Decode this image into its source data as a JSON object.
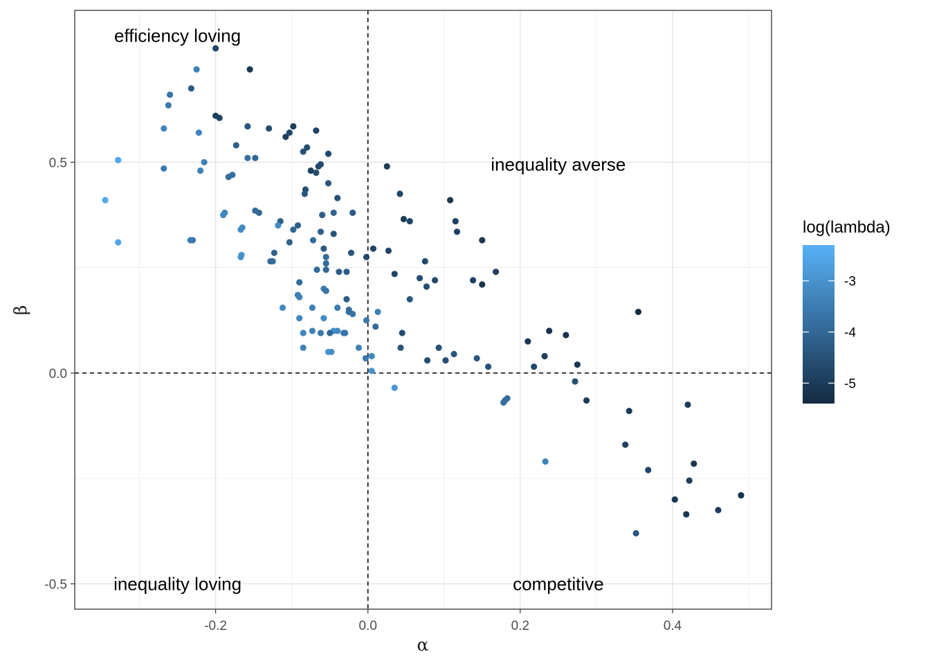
{
  "chart_data": {
    "type": "scatter",
    "title": "",
    "xlabel": "α",
    "ylabel": "β",
    "xlim": [
      -0.385,
      0.53
    ],
    "ylim": [
      -0.56,
      0.86
    ],
    "x_ticks": [
      -0.2,
      0.0,
      0.2,
      0.4
    ],
    "x_tick_labels": [
      "-0.2",
      "0.0",
      "0.2",
      "0.4"
    ],
    "y_ticks": [
      -0.5,
      0.0,
      0.5
    ],
    "y_tick_labels": [
      "-0.5",
      "0.0",
      "0.5"
    ],
    "grid": true,
    "reference_lines": [
      {
        "axis": "x",
        "value": 0,
        "style": "dashed"
      },
      {
        "axis": "y",
        "value": 0,
        "style": "dashed"
      }
    ],
    "annotations": [
      {
        "text": "efficiency loving",
        "x": -0.25,
        "y": 0.8
      },
      {
        "text": "inequality averse",
        "x": 0.25,
        "y": 0.495
      },
      {
        "text": "inequality loving",
        "x": -0.25,
        "y": -0.5
      },
      {
        "text": "competitive",
        "x": 0.25,
        "y": -0.5
      }
    ],
    "color_scale": {
      "name": "log(lambda)",
      "low": -5.4,
      "high": -2.3,
      "low_color": "#132B43",
      "high_color": "#56B1F7",
      "ticks": [
        -3,
        -4,
        -5
      ],
      "tick_labels": [
        "-3",
        "-4",
        "-5"
      ],
      "legend_position": "right"
    },
    "points": [
      {
        "x": -0.2,
        "y": 0.77,
        "c": -4.8
      },
      {
        "x": -0.155,
        "y": 0.72,
        "c": -5.1
      },
      {
        "x": -0.225,
        "y": 0.72,
        "c": -3.4
      },
      {
        "x": -0.232,
        "y": 0.675,
        "c": -4.3
      },
      {
        "x": -0.26,
        "y": 0.66,
        "c": -3.7
      },
      {
        "x": -0.262,
        "y": 0.635,
        "c": -3.6
      },
      {
        "x": -0.2,
        "y": 0.61,
        "c": -4.9
      },
      {
        "x": -0.195,
        "y": 0.605,
        "c": -4.9
      },
      {
        "x": -0.268,
        "y": 0.58,
        "c": -3.3
      },
      {
        "x": -0.222,
        "y": 0.57,
        "c": -3.3
      },
      {
        "x": -0.158,
        "y": 0.585,
        "c": -4.4
      },
      {
        "x": -0.13,
        "y": 0.58,
        "c": -4.6
      },
      {
        "x": -0.098,
        "y": 0.585,
        "c": -5.0
      },
      {
        "x": -0.103,
        "y": 0.57,
        "c": -4.7
      },
      {
        "x": -0.108,
        "y": 0.56,
        "c": -4.9
      },
      {
        "x": -0.068,
        "y": 0.575,
        "c": -4.8
      },
      {
        "x": -0.173,
        "y": 0.54,
        "c": -4.2
      },
      {
        "x": -0.08,
        "y": 0.535,
        "c": -4.6
      },
      {
        "x": -0.085,
        "y": 0.525,
        "c": -4.5
      },
      {
        "x": -0.052,
        "y": 0.52,
        "c": -4.7
      },
      {
        "x": -0.328,
        "y": 0.505,
        "c": -2.6
      },
      {
        "x": -0.158,
        "y": 0.51,
        "c": -3.8
      },
      {
        "x": -0.148,
        "y": 0.51,
        "c": -4.0
      },
      {
        "x": -0.215,
        "y": 0.5,
        "c": -3.4
      },
      {
        "x": -0.268,
        "y": 0.485,
        "c": -3.6
      },
      {
        "x": -0.22,
        "y": 0.48,
        "c": -3.4
      },
      {
        "x": -0.062,
        "y": 0.495,
        "c": -4.6
      },
      {
        "x": -0.065,
        "y": 0.49,
        "c": -4.7
      },
      {
        "x": -0.075,
        "y": 0.48,
        "c": -4.9
      },
      {
        "x": -0.068,
        "y": 0.475,
        "c": -4.6
      },
      {
        "x": -0.178,
        "y": 0.47,
        "c": -3.8
      },
      {
        "x": -0.183,
        "y": 0.465,
        "c": -3.9
      },
      {
        "x": 0.025,
        "y": 0.49,
        "c": -5.0
      },
      {
        "x": -0.052,
        "y": 0.45,
        "c": -4.4
      },
      {
        "x": -0.082,
        "y": 0.435,
        "c": -4.6
      },
      {
        "x": -0.083,
        "y": 0.425,
        "c": -4.4
      },
      {
        "x": 0.042,
        "y": 0.425,
        "c": -4.8
      },
      {
        "x": -0.04,
        "y": 0.415,
        "c": -4.5
      },
      {
        "x": 0.108,
        "y": 0.41,
        "c": -5.1
      },
      {
        "x": -0.345,
        "y": 0.41,
        "c": -2.5
      },
      {
        "x": -0.148,
        "y": 0.385,
        "c": -3.9
      },
      {
        "x": -0.143,
        "y": 0.38,
        "c": -4.0
      },
      {
        "x": -0.188,
        "y": 0.38,
        "c": -3.3
      },
      {
        "x": -0.19,
        "y": 0.375,
        "c": -3.3
      },
      {
        "x": -0.045,
        "y": 0.38,
        "c": -4.1
      },
      {
        "x": -0.02,
        "y": 0.38,
        "c": -4.3
      },
      {
        "x": -0.06,
        "y": 0.375,
        "c": -4.2
      },
      {
        "x": 0.047,
        "y": 0.365,
        "c": -5.0
      },
      {
        "x": 0.055,
        "y": 0.36,
        "c": -4.8
      },
      {
        "x": 0.115,
        "y": 0.36,
        "c": -4.9
      },
      {
        "x": -0.115,
        "y": 0.36,
        "c": -4.2
      },
      {
        "x": -0.118,
        "y": 0.35,
        "c": -3.2
      },
      {
        "x": -0.165,
        "y": 0.345,
        "c": -3.2
      },
      {
        "x": -0.167,
        "y": 0.34,
        "c": -3.2
      },
      {
        "x": -0.092,
        "y": 0.35,
        "c": -4.2
      },
      {
        "x": -0.098,
        "y": 0.34,
        "c": -4.0
      },
      {
        "x": 0.117,
        "y": 0.335,
        "c": -4.9
      },
      {
        "x": -0.062,
        "y": 0.335,
        "c": -4.2
      },
      {
        "x": -0.045,
        "y": 0.33,
        "c": -4.5
      },
      {
        "x": -0.233,
        "y": 0.315,
        "c": -3.5
      },
      {
        "x": -0.23,
        "y": 0.315,
        "c": -3.6
      },
      {
        "x": -0.328,
        "y": 0.31,
        "c": -2.6
      },
      {
        "x": -0.103,
        "y": 0.31,
        "c": -4.1
      },
      {
        "x": -0.072,
        "y": 0.315,
        "c": -3.9
      },
      {
        "x": 0.15,
        "y": 0.315,
        "c": -5.1
      },
      {
        "x": -0.058,
        "y": 0.295,
        "c": -4.3
      },
      {
        "x": 0.007,
        "y": 0.295,
        "c": -4.8
      },
      {
        "x": 0.027,
        "y": 0.29,
        "c": -4.8
      },
      {
        "x": -0.022,
        "y": 0.285,
        "c": -4.4
      },
      {
        "x": -0.123,
        "y": 0.285,
        "c": -4.1
      },
      {
        "x": -0.166,
        "y": 0.28,
        "c": -3.0
      },
      {
        "x": -0.167,
        "y": 0.275,
        "c": -3.0
      },
      {
        "x": -0.055,
        "y": 0.275,
        "c": -3.9
      },
      {
        "x": -0.002,
        "y": 0.275,
        "c": -4.7
      },
      {
        "x": -0.128,
        "y": 0.265,
        "c": -3.9
      },
      {
        "x": -0.125,
        "y": 0.265,
        "c": -3.9
      },
      {
        "x": 0.075,
        "y": 0.265,
        "c": -4.7
      },
      {
        "x": -0.055,
        "y": 0.26,
        "c": -3.9
      },
      {
        "x": -0.055,
        "y": 0.245,
        "c": -4.0
      },
      {
        "x": -0.067,
        "y": 0.245,
        "c": -3.9
      },
      {
        "x": 0.168,
        "y": 0.24,
        "c": -4.9
      },
      {
        "x": -0.038,
        "y": 0.24,
        "c": -4.2
      },
      {
        "x": -0.028,
        "y": 0.24,
        "c": -4.3
      },
      {
        "x": 0.035,
        "y": 0.235,
        "c": -4.8
      },
      {
        "x": 0.068,
        "y": 0.225,
        "c": -4.6
      },
      {
        "x": 0.088,
        "y": 0.22,
        "c": -4.7
      },
      {
        "x": 0.138,
        "y": 0.22,
        "c": -4.9
      },
      {
        "x": 0.15,
        "y": 0.21,
        "c": -5.2
      },
      {
        "x": -0.09,
        "y": 0.215,
        "c": -3.9
      },
      {
        "x": -0.058,
        "y": 0.2,
        "c": -3.5
      },
      {
        "x": 0.077,
        "y": 0.205,
        "c": -4.6
      },
      {
        "x": -0.055,
        "y": 0.195,
        "c": -3.7
      },
      {
        "x": -0.092,
        "y": 0.185,
        "c": -3.5
      },
      {
        "x": -0.09,
        "y": 0.18,
        "c": -3.4
      },
      {
        "x": 0.055,
        "y": 0.175,
        "c": -4.4
      },
      {
        "x": -0.028,
        "y": 0.175,
        "c": -4.3
      },
      {
        "x": -0.112,
        "y": 0.155,
        "c": -3.2
      },
      {
        "x": -0.073,
        "y": 0.155,
        "c": -3.4
      },
      {
        "x": -0.04,
        "y": 0.155,
        "c": -3.5
      },
      {
        "x": -0.025,
        "y": 0.15,
        "c": -3.8
      },
      {
        "x": -0.025,
        "y": 0.145,
        "c": -3.9
      },
      {
        "x": 0.013,
        "y": 0.145,
        "c": -3.4
      },
      {
        "x": 0.355,
        "y": 0.145,
        "c": -5.4
      },
      {
        "x": -0.02,
        "y": 0.14,
        "c": -3.7
      },
      {
        "x": -0.09,
        "y": 0.13,
        "c": -3.3
      },
      {
        "x": -0.058,
        "y": 0.13,
        "c": -3.2
      },
      {
        "x": -0.002,
        "y": 0.125,
        "c": -3.6
      },
      {
        "x": 0.01,
        "y": 0.11,
        "c": -3.9
      },
      {
        "x": -0.073,
        "y": 0.1,
        "c": -3.4
      },
      {
        "x": -0.045,
        "y": 0.1,
        "c": -3.1
      },
      {
        "x": -0.04,
        "y": 0.1,
        "c": -3.2
      },
      {
        "x": 0.238,
        "y": 0.1,
        "c": -5.2
      },
      {
        "x": -0.085,
        "y": 0.095,
        "c": -3.3
      },
      {
        "x": -0.062,
        "y": 0.095,
        "c": -3.6
      },
      {
        "x": -0.05,
        "y": 0.095,
        "c": -4.0
      },
      {
        "x": -0.032,
        "y": 0.095,
        "c": -3.5
      },
      {
        "x": -0.03,
        "y": 0.095,
        "c": -3.7
      },
      {
        "x": 0.045,
        "y": 0.095,
        "c": -4.6
      },
      {
        "x": 0.26,
        "y": 0.09,
        "c": -5.2
      },
      {
        "x": 0.21,
        "y": 0.075,
        "c": -5.1
      },
      {
        "x": -0.085,
        "y": 0.06,
        "c": -3.4
      },
      {
        "x": -0.012,
        "y": 0.06,
        "c": -3.4
      },
      {
        "x": 0.043,
        "y": 0.06,
        "c": -4.4
      },
      {
        "x": 0.093,
        "y": 0.06,
        "c": -4.5
      },
      {
        "x": -0.052,
        "y": 0.05,
        "c": -3.1
      },
      {
        "x": -0.048,
        "y": 0.05,
        "c": -3.1
      },
      {
        "x": 0.113,
        "y": 0.045,
        "c": -4.4
      },
      {
        "x": 0.005,
        "y": 0.04,
        "c": -3.3
      },
      {
        "x": 0.232,
        "y": 0.04,
        "c": -4.9
      },
      {
        "x": -0.003,
        "y": 0.035,
        "c": -3.6
      },
      {
        "x": 0.078,
        "y": 0.03,
        "c": -4.6
      },
      {
        "x": 0.102,
        "y": 0.03,
        "c": -4.6
      },
      {
        "x": 0.143,
        "y": 0.035,
        "c": -4.4
      },
      {
        "x": 0.275,
        "y": 0.02,
        "c": -5.1
      },
      {
        "x": 0.158,
        "y": 0.015,
        "c": -4.5
      },
      {
        "x": 0.218,
        "y": 0.015,
        "c": -4.7
      },
      {
        "x": 0.005,
        "y": 0.005,
        "c": -3.0
      },
      {
        "x": 0.272,
        "y": -0.02,
        "c": -4.6
      },
      {
        "x": 0.035,
        "y": -0.035,
        "c": -2.9
      },
      {
        "x": 0.18,
        "y": -0.065,
        "c": -3.9
      },
      {
        "x": 0.183,
        "y": -0.06,
        "c": -3.9
      },
      {
        "x": 0.178,
        "y": -0.07,
        "c": -3.8
      },
      {
        "x": 0.287,
        "y": -0.065,
        "c": -5.0
      },
      {
        "x": 0.42,
        "y": -0.075,
        "c": -5.0
      },
      {
        "x": 0.343,
        "y": -0.09,
        "c": -5.0
      },
      {
        "x": 0.338,
        "y": -0.17,
        "c": -4.9
      },
      {
        "x": 0.233,
        "y": -0.21,
        "c": -3.4
      },
      {
        "x": 0.428,
        "y": -0.215,
        "c": -5.2
      },
      {
        "x": 0.368,
        "y": -0.23,
        "c": -4.8
      },
      {
        "x": 0.422,
        "y": -0.255,
        "c": -5.0
      },
      {
        "x": 0.49,
        "y": -0.29,
        "c": -5.2
      },
      {
        "x": 0.403,
        "y": -0.3,
        "c": -5.1
      },
      {
        "x": 0.46,
        "y": -0.325,
        "c": -5.0
      },
      {
        "x": 0.418,
        "y": -0.335,
        "c": -5.1
      },
      {
        "x": 0.352,
        "y": -0.38,
        "c": -4.4
      }
    ]
  }
}
